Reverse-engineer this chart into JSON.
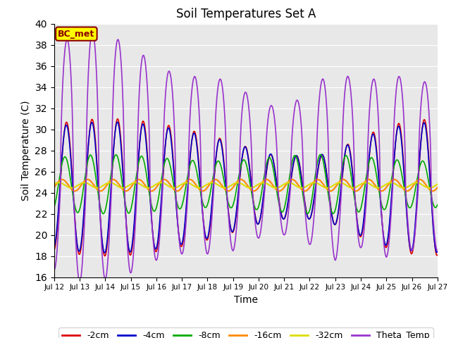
{
  "title": "Soil Temperatures Set A",
  "xlabel": "Time",
  "ylabel": "Soil Temperature (C)",
  "xlim": [
    0,
    360
  ],
  "ylim": [
    16,
    40
  ],
  "yticks": [
    16,
    18,
    20,
    22,
    24,
    26,
    28,
    30,
    32,
    34,
    36,
    38,
    40
  ],
  "xtick_labels": [
    "Jul 12",
    "Jul 13",
    "Jul 14",
    "Jul 15",
    "Jul 16",
    "Jul 17",
    "Jul 18",
    "Jul 19",
    "Jul 20",
    "Jul 21",
    "Jul 22",
    "Jul 23",
    "Jul 24",
    "Jul 25",
    "Jul 26",
    "Jul 27"
  ],
  "xtick_positions": [
    0,
    24,
    48,
    72,
    96,
    120,
    144,
    168,
    192,
    216,
    240,
    264,
    288,
    312,
    336,
    360
  ],
  "annotation_text": "BC_met",
  "annotation_color": "#8B0000",
  "annotation_bg": "#FFFF00",
  "bg_color": "#E8E8E8",
  "line_colors": {
    "-2cm": "#DD0000",
    "-4cm": "#0000CC",
    "-8cm": "#00AA00",
    "-16cm": "#FF8800",
    "-32cm": "#DDDD00",
    "Theta_Temp": "#9933CC"
  },
  "legend_order": [
    "-2cm",
    "-4cm",
    "-8cm",
    "-16cm",
    "-32cm",
    "Theta_Temp"
  ]
}
